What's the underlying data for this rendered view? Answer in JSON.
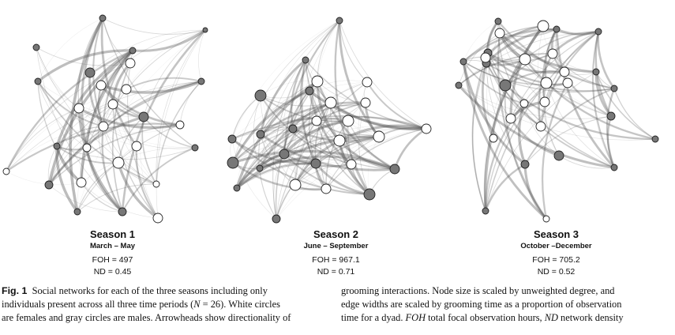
{
  "panels": [
    {
      "title": "Season 1",
      "months": "March – May",
      "foh": "FOH =  497",
      "nd": "ND = 0.45"
    },
    {
      "title": "Season 2",
      "months": "June – September",
      "foh": "FOH =  967.1",
      "nd": "ND = 0.71"
    },
    {
      "title": "Season 3",
      "months": "October –December",
      "foh": "FOH = 705.2",
      "nd": "ND = 0.52"
    }
  ],
  "caption": {
    "fig_label": "Fig. 1",
    "left_lines": [
      "Social networks for each of the three seasons including only",
      "individuals present across all three time periods (",
      "N",
      " = 26). White circles",
      "are females and gray circles are males. Arrowheads show directionality of"
    ],
    "right_lines": [
      "grooming interactions. Node size is scaled by unweighted degree, and",
      "edge widths are scaled by grooming time as a proportion of observation",
      "time for a dyad. ",
      "FOH",
      " total focal observation hours, ",
      "ND",
      " network density"
    ]
  },
  "colors": {
    "female": "#ffffff",
    "male": "#777777",
    "edge": "#555555"
  }
}
